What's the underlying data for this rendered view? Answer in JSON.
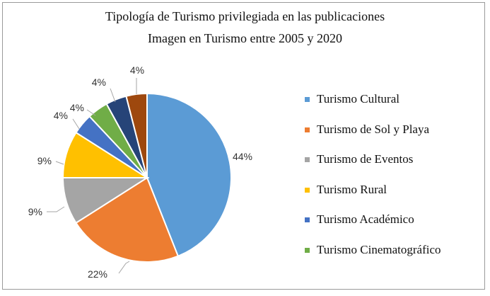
{
  "chart_data": {
    "type": "pie",
    "title": "Tipología de Turismo privilegiada en las publicaciones",
    "subtitle": "Imagen en Turismo entre 2005 y 2020",
    "categories": [
      "Turismo Cultural",
      "Turismo de Sol y Playa",
      "Turismo de Eventos",
      "Turismo Rural",
      "Turismo Académico",
      "Turismo Cinematográfico",
      "",
      ""
    ],
    "values": [
      44,
      22,
      9,
      9,
      4,
      4,
      4,
      4
    ],
    "labels": [
      "44%",
      "22%",
      "9%",
      "9%",
      "4%",
      "4%",
      "4%",
      "4%"
    ],
    "colors": [
      "#5b9bd5",
      "#ed7d31",
      "#a5a5a5",
      "#ffc000",
      "#4472c4",
      "#70ad47",
      "#264478",
      "#9e480e"
    ],
    "legend": {
      "position": "right",
      "items": [
        {
          "label": "Turismo Cultural",
          "color": "#5b9bd5"
        },
        {
          "label": "Turismo de Sol y Playa",
          "color": "#ed7d31"
        },
        {
          "label": "Turismo de Eventos",
          "color": "#a5a5a5"
        },
        {
          "label": "Turismo Rural",
          "color": "#ffc000"
        },
        {
          "label": "Turismo Académico",
          "color": "#4472c4"
        },
        {
          "label": "Turismo Cinematográfico",
          "color": "#70ad47"
        }
      ]
    }
  }
}
